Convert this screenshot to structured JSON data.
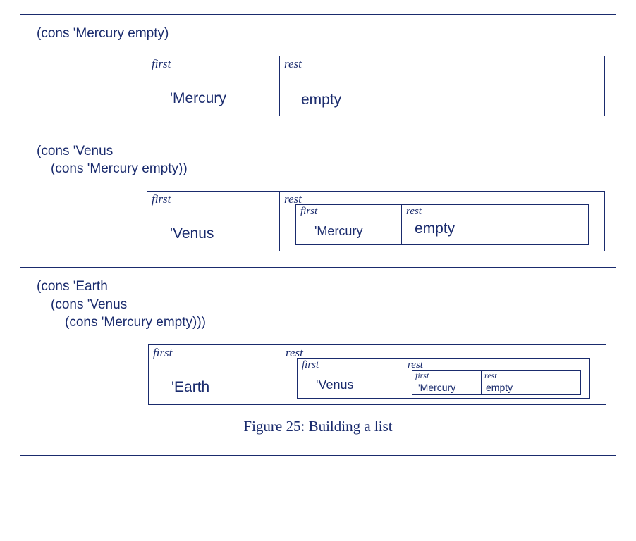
{
  "labels": {
    "first": "first",
    "rest": "rest"
  },
  "sections": {
    "s1": {
      "code": [
        "(cons 'Mercury empty)"
      ],
      "box": {
        "first": "'Mercury",
        "rest_simple": "empty"
      }
    },
    "s2": {
      "code": [
        "(cons 'Venus",
        "(cons 'Mercury empty))"
      ],
      "box": {
        "first": "'Venus",
        "nested": {
          "first": "'Mercury",
          "rest_simple": "empty"
        }
      }
    },
    "s3": {
      "code": [
        "(cons 'Earth",
        "(cons 'Venus",
        "(cons 'Mercury empty)))"
      ],
      "box": {
        "first": "'Earth",
        "nested": {
          "first": "'Venus",
          "nested": {
            "first": "'Mercury",
            "rest_simple": "empty"
          }
        }
      }
    }
  },
  "caption": "Figure 25: Building a list",
  "colors": {
    "ink": "#1a2b6d",
    "bg": "#ffffff"
  }
}
